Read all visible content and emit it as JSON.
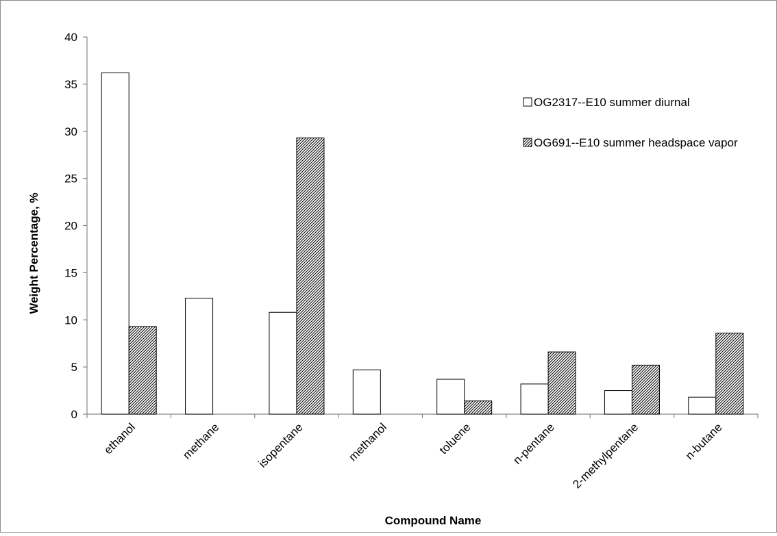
{
  "chart_data": {
    "type": "bar",
    "title": "",
    "xlabel": "Compound Name",
    "ylabel": "Weight Percentage, %",
    "ylim": [
      0,
      40
    ],
    "yticks": [
      0,
      5,
      10,
      15,
      20,
      25,
      30,
      35,
      40
    ],
    "ytick_labels": [
      "0",
      "5",
      "10",
      "15",
      "20",
      "25",
      "30",
      "35",
      "40"
    ],
    "grid": false,
    "legend_position": "top-right",
    "categories": [
      "ethanol",
      "methane",
      "isopentane",
      "methanol",
      "toluene",
      "n-pentane",
      "2-methylpentane",
      "n-butane"
    ],
    "series": [
      {
        "name": "OG2317--E10 summer diurnal",
        "fill": "white",
        "values": [
          36.2,
          12.3,
          10.8,
          4.7,
          3.7,
          3.2,
          2.5,
          1.8
        ]
      },
      {
        "name": "OG691--E10 summer headspace vapor",
        "fill": "hatched",
        "values": [
          9.3,
          0,
          29.3,
          0,
          1.4,
          6.6,
          5.2,
          8.6
        ]
      }
    ]
  },
  "colors": {
    "border": "#8c8c8c",
    "bar_stroke": "#000000",
    "axis": "#878787"
  }
}
